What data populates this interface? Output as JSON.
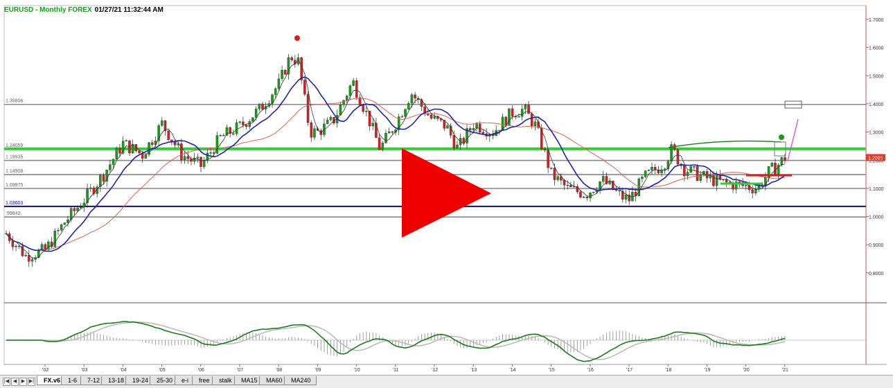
{
  "header": {
    "title": "EURUSD - Monthly  FOREX",
    "timestamp": "01/27/21  11:32:44 AM"
  },
  "colors": {
    "candle_up": "#1a9a1a",
    "candle_down": "#d42020",
    "ma_fast": "#333333",
    "ma_mid": "#1e22b0",
    "ma_slow": "#e06050",
    "support_line": "#33cc33",
    "level_line": "#555555",
    "navy_line": "#101070",
    "play_icon": "#ee0000",
    "price_badge": "#e03a2a",
    "macd_line": "#1a7a1a",
    "signal_line": "#bbbbbb",
    "marker_up": "#1a9a1a",
    "marker_down": "#d42020",
    "projection": "#e040e0"
  },
  "chart_data": {
    "type": "candlestick",
    "symbol": "EURUSD",
    "interval": "Monthly",
    "x_axis": {
      "tick_labels": [
        "'02",
        "'03",
        "'04",
        "'05",
        "'06",
        "'07",
        "'08",
        "'09",
        "'10",
        "'11",
        "'12",
        "'13",
        "'14",
        "'15",
        "'16",
        "'17",
        "'18",
        "'19",
        "'20",
        "'21"
      ]
    },
    "y_axis": {
      "tick_labels": [
        "1.7000",
        "1.6000",
        "1.5000",
        "1.4000",
        "1.3000",
        "1.2000",
        "1.1000",
        "1.0000",
        "0.9000",
        "0.8000"
      ],
      "range": [
        0.7,
        1.7
      ],
      "position": "right"
    },
    "last_price": "1.2095",
    "horizontal_levels": [
      {
        "label": "1.39806",
        "value": 1.39806,
        "kind": "gray"
      },
      {
        "label": "1.24059",
        "value": 1.24059,
        "kind": "green"
      },
      {
        "label": "1.19935",
        "value": 1.19935,
        "kind": "gray"
      },
      {
        "label": "1.14908",
        "value": 1.14908,
        "kind": "gray"
      },
      {
        "label": "1.09975",
        "value": 1.09975,
        "kind": "gray"
      },
      {
        "label": "1.03603",
        "value": 1.03603,
        "kind": "navy"
      },
      {
        "label": ".99842",
        "value": 0.99842,
        "kind": "gray"
      }
    ],
    "price_path": [
      [
        2001.0,
        0.94
      ],
      [
        2001.5,
        0.86
      ],
      [
        2002.0,
        0.88
      ],
      [
        2002.5,
        0.98
      ],
      [
        2003.0,
        1.06
      ],
      [
        2003.5,
        1.15
      ],
      [
        2004.0,
        1.26
      ],
      [
        2004.5,
        1.22
      ],
      [
        2005.0,
        1.33
      ],
      [
        2005.5,
        1.22
      ],
      [
        2006.0,
        1.18
      ],
      [
        2006.5,
        1.28
      ],
      [
        2007.0,
        1.32
      ],
      [
        2007.5,
        1.38
      ],
      [
        2008.0,
        1.47
      ],
      [
        2008.3,
        1.57
      ],
      [
        2008.5,
        1.55
      ],
      [
        2008.8,
        1.3
      ],
      [
        2009.0,
        1.3
      ],
      [
        2009.4,
        1.34
      ],
      [
        2009.9,
        1.48
      ],
      [
        2010.3,
        1.35
      ],
      [
        2010.6,
        1.24
      ],
      [
        2011.0,
        1.33
      ],
      [
        2011.4,
        1.44
      ],
      [
        2011.9,
        1.35
      ],
      [
        2012.3,
        1.32
      ],
      [
        2012.6,
        1.24
      ],
      [
        2013.0,
        1.33
      ],
      [
        2013.5,
        1.3
      ],
      [
        2014.0,
        1.37
      ],
      [
        2014.3,
        1.38
      ],
      [
        2014.6,
        1.32
      ],
      [
        2015.0,
        1.15
      ],
      [
        2015.4,
        1.1
      ],
      [
        2015.9,
        1.08
      ],
      [
        2016.3,
        1.13
      ],
      [
        2016.8,
        1.07
      ],
      [
        2017.0,
        1.06
      ],
      [
        2017.4,
        1.14
      ],
      [
        2017.9,
        1.19
      ],
      [
        2018.1,
        1.24
      ],
      [
        2018.4,
        1.17
      ],
      [
        2018.9,
        1.14
      ],
      [
        2019.4,
        1.12
      ],
      [
        2019.9,
        1.11
      ],
      [
        2020.3,
        1.1
      ],
      [
        2020.6,
        1.16
      ],
      [
        2020.8,
        1.18
      ],
      [
        2021.0,
        1.21
      ]
    ],
    "indicators": [
      "moving average (fast)",
      "moving average (mid)",
      "moving average (slow)",
      "MACD",
      "MACD signal",
      "MACD histogram"
    ]
  },
  "tabs": [
    {
      "label": "FX.v6",
      "active": true
    },
    {
      "label": "1-6"
    },
    {
      "label": "7-12"
    },
    {
      "label": "13-18"
    },
    {
      "label": "19-24"
    },
    {
      "label": "25-30"
    },
    {
      "label": "e-i"
    },
    {
      "label": "free"
    },
    {
      "label": "stalk"
    },
    {
      "label": "MA15"
    },
    {
      "label": "MA60"
    },
    {
      "label": "MA240"
    }
  ],
  "nav_buttons": [
    "|◀",
    "◀",
    "▶",
    "▶|"
  ],
  "overlay": {
    "icon": "play-icon"
  }
}
